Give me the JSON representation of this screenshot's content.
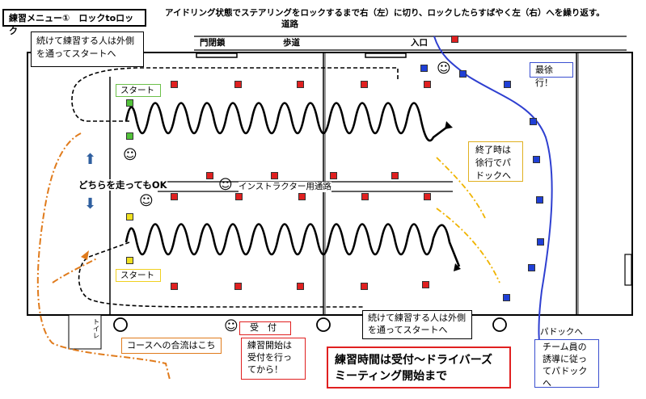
{
  "title": "練習メニュー①　ロックtoロック",
  "instruction": "アイドリング状態でステアリングをロックするまで右（左）に切り、ロックしたらすばやく左（右）へを繰り返す。",
  "road_label": "道路",
  "gate_label": "門閉鎖",
  "sidewalk_label": "歩道",
  "entrance_label": "入口",
  "notes": {
    "continue_top": "続けて練習する人は外側を通ってスタートへ",
    "continue_bottom": "続けて練習する人は外側を通ってスタートへ",
    "slowest": "最徐行！",
    "finish": "終了時は徐行でパドックへ",
    "either_ok": "どちらを走ってもOK",
    "instructor_path": "インストラクター用通路",
    "merge": "コースへの合流はこち",
    "reception": "受　付",
    "start_after": "練習開始は受付を行ってから！",
    "practice_time": "練習時間は受付～ドライバーズミーティング開始まで",
    "paddock_head": "パドックへ",
    "paddock_body": "チーム員の誘導に従ってパドックへ"
  },
  "start_top": "スタート",
  "start_bottom": "スタート",
  "toilet": "トイレ",
  "colors": {
    "cone_red": "#e02020",
    "cone_blue": "#1f3fd6",
    "start_green": "#52c23a",
    "start_yellow": "#f0e020",
    "path_blue": "#2e3fd0",
    "path_orange": "#e07b1c",
    "path_yellow": "#f0b400",
    "arrow_blue": "#2f5f9f",
    "start_top_border": "#6cc04a",
    "start_bottom_border": "#f0d020",
    "practice_time_border": "#e02020"
  },
  "icons": [
    "smiley-icon",
    "arrow-up-icon",
    "arrow-down-icon",
    "cone-icon"
  ]
}
